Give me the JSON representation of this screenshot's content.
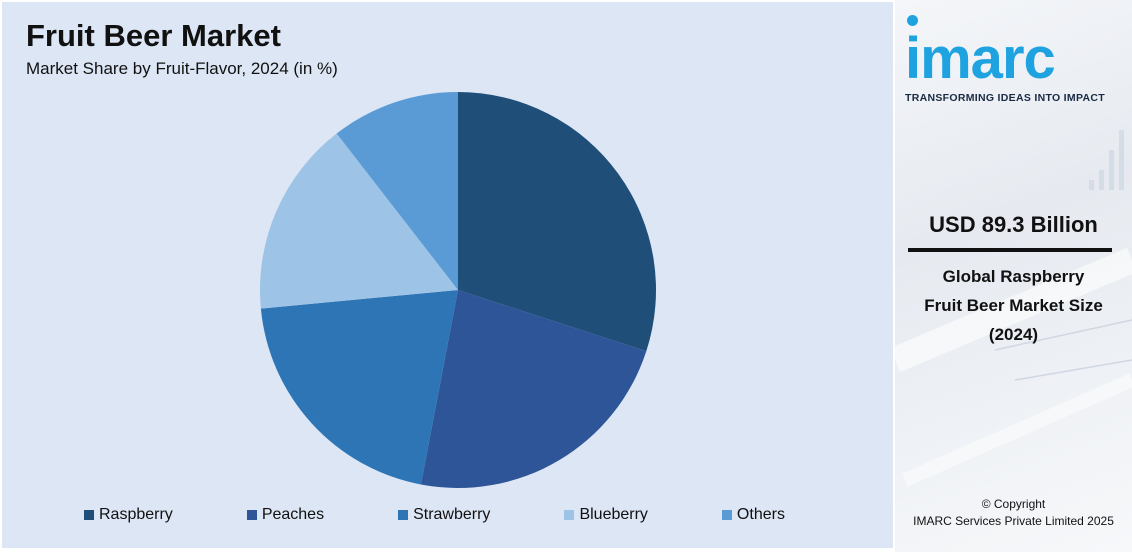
{
  "chart_data": {
    "type": "pie",
    "title": "Fruit Beer Market",
    "subtitle": "Market Share by Fruit-Flavor, 2024 (in %)",
    "categories": [
      "Raspberry",
      "Peaches",
      "Strawberry",
      "Blueberry",
      "Others"
    ],
    "values": [
      30.0,
      23.0,
      20.5,
      16.0,
      10.5
    ],
    "colors": [
      "#1f4e79",
      "#2e5597",
      "#2e75b6",
      "#9dc3e6",
      "#5b9bd5"
    ],
    "legend_position": "bottom"
  },
  "sidebar": {
    "logo": "imarc",
    "tagline": "TRANSFORMING IDEAS INTO IMPACT",
    "market_value": "USD 89.3 Billion",
    "market_desc_lines": [
      "Global Raspberry",
      "Fruit Beer Market Size",
      "(2024)"
    ],
    "copyright_lines": [
      "© Copyright",
      "IMARC Services Private Limited 2025"
    ]
  }
}
